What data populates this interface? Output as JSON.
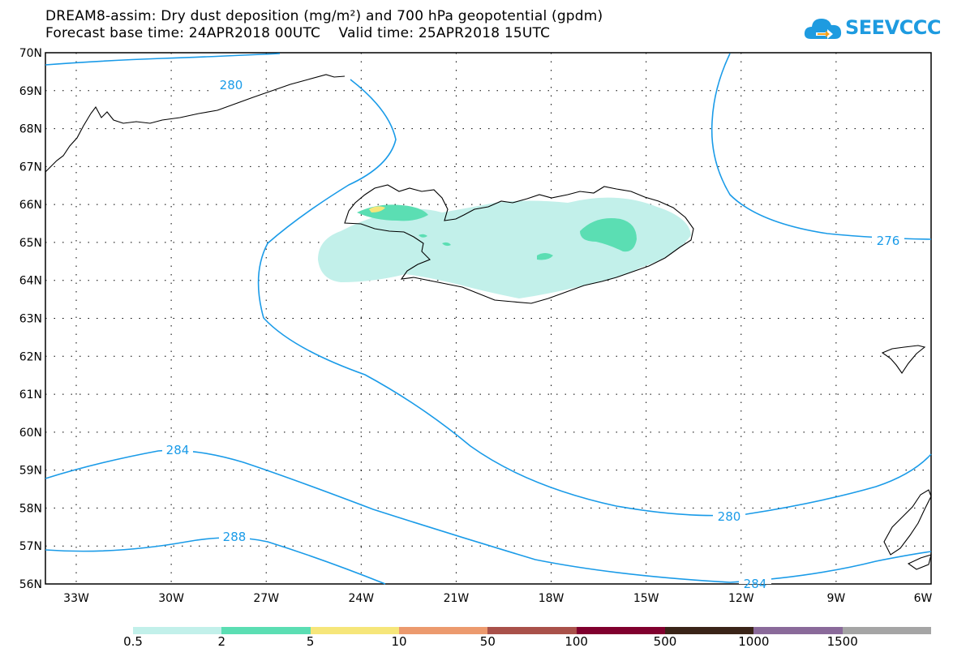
{
  "title": {
    "line1": "DREAM8-assim: Dry dust deposition (mg/m²) and 700 hPa geopotential (gpdm)",
    "line2": "Forecast base time: 24APR2018 00UTC    Valid time: 25APR2018 15UTC"
  },
  "logo": {
    "text": "SEEVCCC",
    "icon": "cloud-arrow-icon",
    "color": "#1e9be0"
  },
  "map": {
    "lat_labels": [
      "70N",
      "69N",
      "68N",
      "67N",
      "66N",
      "65N",
      "64N",
      "63N",
      "62N",
      "61N",
      "60N",
      "59N",
      "58N",
      "57N",
      "56N"
    ],
    "lon_labels": [
      "33W",
      "30W",
      "27W",
      "24W",
      "21W",
      "18W",
      "15W",
      "12W",
      "9W",
      "6W"
    ],
    "contour_labels": [
      "280",
      "276",
      "284",
      "280",
      "288",
      "284"
    ],
    "contour_color": "#1a9be8",
    "coastline_color": "#000000"
  },
  "legend": {
    "thresholds": [
      "0.5",
      "2",
      "5",
      "10",
      "50",
      "100",
      "500",
      "1000",
      "1500"
    ],
    "colors": [
      "#c2f0ea",
      "#5bdeb3",
      "#f6e67a",
      "#ec9a6e",
      "#a9514a",
      "#80002e",
      "#3a2418",
      "#8a6a9a",
      "#a5a5a5"
    ]
  }
}
